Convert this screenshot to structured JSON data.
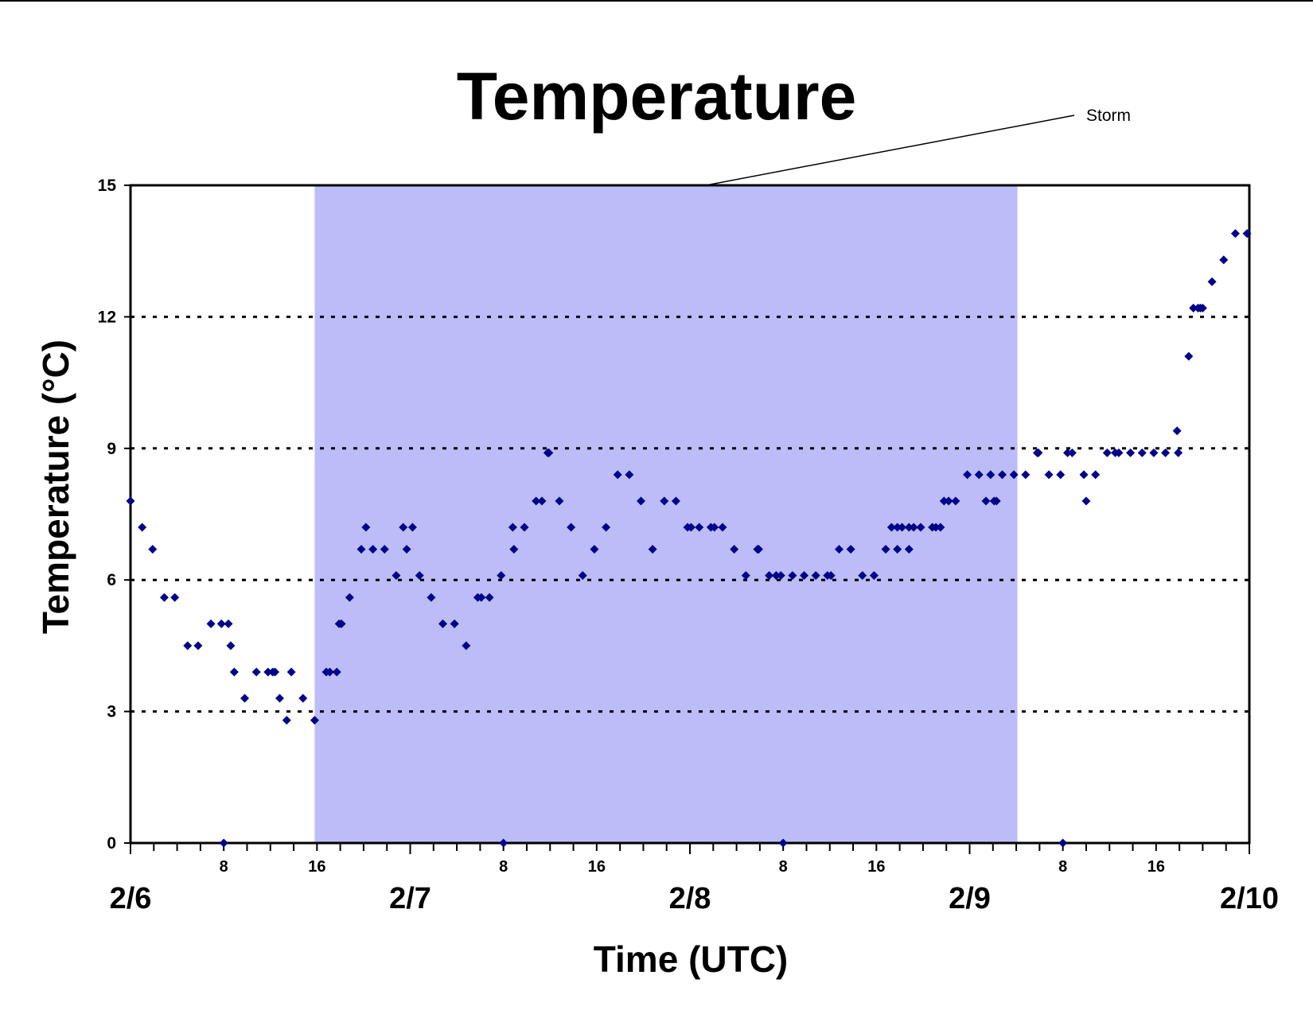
{
  "chart_data": {
    "type": "scatter",
    "title": "Temperature",
    "xlabel": "Time (UTC)",
    "ylabel": "Temperature (°C)",
    "x_unit": "hours",
    "xlim": [
      0,
      96
    ],
    "ylim": [
      0,
      15
    ],
    "y_ticks": [
      "0",
      "3",
      "6",
      "9",
      "12",
      "15"
    ],
    "grid": "horizontal dotted at 3, 6, 9, 12",
    "x_ticks_hours": [
      {
        "hour": 8,
        "label": "8"
      },
      {
        "hour": 16,
        "label": "16"
      },
      {
        "hour": 32,
        "label": "8"
      },
      {
        "hour": 40,
        "label": "16"
      },
      {
        "hour": 56,
        "label": "8"
      },
      {
        "hour": 64,
        "label": "16"
      },
      {
        "hour": 80,
        "label": "8"
      },
      {
        "hour": 88,
        "label": "16"
      }
    ],
    "date_labels": [
      {
        "hour": 0,
        "label": "2/6"
      },
      {
        "hour": 24,
        "label": "2/7"
      },
      {
        "hour": 48,
        "label": "2/8"
      },
      {
        "hour": 72,
        "label": "2/9"
      },
      {
        "hour": 96,
        "label": "2/10"
      }
    ],
    "shaded_region": {
      "x_start": 15.8,
      "x_end": 76.1,
      "color": "#bcbcf8",
      "label": "Storm"
    },
    "annotation": {
      "text": "Storm"
    },
    "marker_color": "#00008b",
    "points": [
      [
        0,
        7.8
      ],
      [
        1,
        7.2
      ],
      [
        1.9,
        6.7
      ],
      [
        2.9,
        5.6
      ],
      [
        3.8,
        5.6
      ],
      [
        4.9,
        4.5
      ],
      [
        5.8,
        4.5
      ],
      [
        6.9,
        5.0
      ],
      [
        7.8,
        5.0
      ],
      [
        8.4,
        5.0
      ],
      [
        8.6,
        4.5
      ],
      [
        8.9,
        3.9
      ],
      [
        9.8,
        3.3
      ],
      [
        10.8,
        3.9
      ],
      [
        11.8,
        3.9
      ],
      [
        12.2,
        3.9
      ],
      [
        12.4,
        3.9
      ],
      [
        12.8,
        3.3
      ],
      [
        13.4,
        2.8
      ],
      [
        13.8,
        3.9
      ],
      [
        14.8,
        3.3
      ],
      [
        15.8,
        2.8
      ],
      [
        16.8,
        3.9
      ],
      [
        17.1,
        3.9
      ],
      [
        17.7,
        3.9
      ],
      [
        17.9,
        5.0
      ],
      [
        18.1,
        5.0
      ],
      [
        18.8,
        5.6
      ],
      [
        19.8,
        6.7
      ],
      [
        20.2,
        7.2
      ],
      [
        20.8,
        6.7
      ],
      [
        21.8,
        6.7
      ],
      [
        22.8,
        6.1
      ],
      [
        23.4,
        7.2
      ],
      [
        23.7,
        6.7
      ],
      [
        24.2,
        7.2
      ],
      [
        24.8,
        6.1
      ],
      [
        25.8,
        5.6
      ],
      [
        26.8,
        5.0
      ],
      [
        27.8,
        5.0
      ],
      [
        28.8,
        4.5
      ],
      [
        29.8,
        5.6
      ],
      [
        30.1,
        5.6
      ],
      [
        30.8,
        5.6
      ],
      [
        31.8,
        6.1
      ],
      [
        32.8,
        7.2
      ],
      [
        32.9,
        6.7
      ],
      [
        33.8,
        7.2
      ],
      [
        34.8,
        7.8
      ],
      [
        35.3,
        7.8
      ],
      [
        35.8,
        8.9
      ],
      [
        35.9,
        8.9
      ],
      [
        36.8,
        7.8
      ],
      [
        37.8,
        7.2
      ],
      [
        38.8,
        6.1
      ],
      [
        39.8,
        6.7
      ],
      [
        40.8,
        7.2
      ],
      [
        41.8,
        8.4
      ],
      [
        42.8,
        8.4
      ],
      [
        43.8,
        7.8
      ],
      [
        44.8,
        6.7
      ],
      [
        45.8,
        7.8
      ],
      [
        46.8,
        7.8
      ],
      [
        47.8,
        7.2
      ],
      [
        48.1,
        7.2
      ],
      [
        48.8,
        7.2
      ],
      [
        49.8,
        7.2
      ],
      [
        50.1,
        7.2
      ],
      [
        50.8,
        7.2
      ],
      [
        51.8,
        6.7
      ],
      [
        52.8,
        6.1
      ],
      [
        53.8,
        6.7
      ],
      [
        53.9,
        6.7
      ],
      [
        54.8,
        6.1
      ],
      [
        55.4,
        6.1
      ],
      [
        55.8,
        6.1
      ],
      [
        56.8,
        6.1
      ],
      [
        57.8,
        6.1
      ],
      [
        58.8,
        6.1
      ],
      [
        59.8,
        6.1
      ],
      [
        60.1,
        6.1
      ],
      [
        60.8,
        6.7
      ],
      [
        61.8,
        6.7
      ],
      [
        62.8,
        6.1
      ],
      [
        63.8,
        6.1
      ],
      [
        64.8,
        6.7
      ],
      [
        65.3,
        7.2
      ],
      [
        65.8,
        7.2
      ],
      [
        65.8,
        6.7
      ],
      [
        66.2,
        7.2
      ],
      [
        66.8,
        7.2
      ],
      [
        66.8,
        6.7
      ],
      [
        67.2,
        7.2
      ],
      [
        67.8,
        7.2
      ],
      [
        68.8,
        7.2
      ],
      [
        69.1,
        7.2
      ],
      [
        69.5,
        7.2
      ],
      [
        69.8,
        7.8
      ],
      [
        70.2,
        7.8
      ],
      [
        70.8,
        7.8
      ],
      [
        71.8,
        8.4
      ],
      [
        72.8,
        8.4
      ],
      [
        73.4,
        7.8
      ],
      [
        73.8,
        8.4
      ],
      [
        74.1,
        7.8
      ],
      [
        74.3,
        7.8
      ],
      [
        74.8,
        8.4
      ],
      [
        75.8,
        8.4
      ],
      [
        76.8,
        8.4
      ],
      [
        77.8,
        8.9
      ],
      [
        77.9,
        8.9
      ],
      [
        78.8,
        8.4
      ],
      [
        79.8,
        8.4
      ],
      [
        80.4,
        8.9
      ],
      [
        80.8,
        8.9
      ],
      [
        81.8,
        8.4
      ],
      [
        82,
        7.8
      ],
      [
        82.8,
        8.4
      ],
      [
        83.8,
        8.9
      ],
      [
        84.5,
        8.9
      ],
      [
        84.8,
        8.9
      ],
      [
        85.8,
        8.9
      ],
      [
        86.8,
        8.9
      ],
      [
        87.8,
        8.9
      ],
      [
        88.8,
        8.9
      ],
      [
        89.8,
        9.4
      ],
      [
        89.9,
        8.9
      ],
      [
        90.8,
        11.1
      ],
      [
        91.2,
        12.2
      ],
      [
        91.6,
        12.2
      ],
      [
        91.8,
        12.2
      ],
      [
        92.0,
        12.2
      ],
      [
        92.8,
        12.8
      ],
      [
        93.8,
        13.3
      ],
      [
        94.8,
        13.9
      ],
      [
        95.8,
        13.9
      ],
      [
        8,
        0
      ],
      [
        32,
        0
      ],
      [
        56,
        0
      ],
      [
        80,
        0
      ]
    ]
  }
}
